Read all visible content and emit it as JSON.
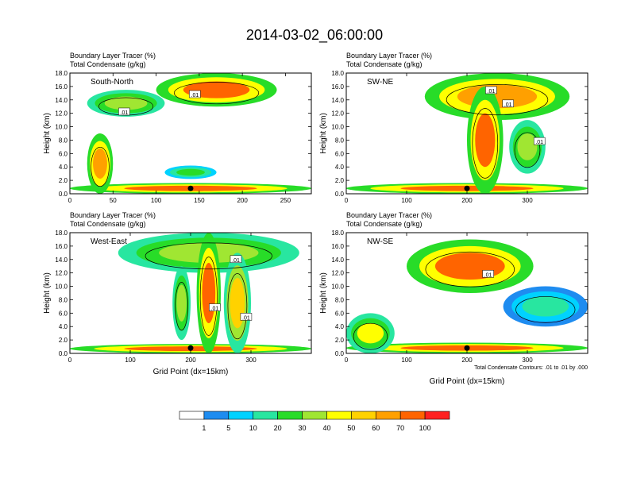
{
  "title": "2014-03-02_06:00:00",
  "chart_data": [
    {
      "type": "heatmap",
      "series_labels": [
        "Boundary Layer Tracer   (%)",
        "Total Condensate   (g/kg)"
      ],
      "panel_label": "South-North",
      "ylabel": "Height (km)",
      "xlabel": "",
      "xlim": [
        0,
        280
      ],
      "xticks": [
        0,
        50,
        100,
        150,
        200,
        250
      ],
      "ylim": [
        0,
        18
      ],
      "yticks": [
        "0.0",
        "2.0",
        "4.0",
        "6.0",
        "8.0",
        "10.0",
        "12.0",
        "14.0",
        "16.0",
        "18.0"
      ],
      "contour_labels": [
        ".01",
        ".01"
      ],
      "contour_label_pos": [
        [
          145,
          14.8
        ],
        [
          63,
          12.2
        ]
      ],
      "marker_x": 140,
      "features": [
        {
          "x": [
            0,
            280
          ],
          "y": [
            0,
            1.6
          ],
          "level": 70
        },
        {
          "x": [
            20,
            110
          ],
          "y": [
            11.5,
            15.5
          ],
          "level": 30
        },
        {
          "x": [
            100,
            240
          ],
          "y": [
            13,
            18
          ],
          "level": 70
        },
        {
          "x": [
            20,
            50
          ],
          "y": [
            0,
            9
          ],
          "level": 60
        },
        {
          "x": [
            110,
            170
          ],
          "y": [
            2.2,
            4.2
          ],
          "level": 20
        }
      ]
    },
    {
      "type": "heatmap",
      "series_labels": [
        "Boundary Layer Tracer   (%)",
        "Total Condensate   (g/kg)"
      ],
      "panel_label": "SW-NE",
      "ylabel": "Height (km)",
      "xlabel": "",
      "xlim": [
        0,
        400
      ],
      "xticks": [
        0,
        100,
        200,
        300
      ],
      "ylim": [
        0,
        18
      ],
      "yticks": [
        "0.0",
        "2.0",
        "4.0",
        "6.0",
        "8.0",
        "10.0",
        "12.0",
        "14.0",
        "16.0",
        "18.0"
      ],
      "contour_labels": [
        ".01",
        ".01",
        ".01"
      ],
      "contour_label_pos": [
        [
          240,
          15.4
        ],
        [
          268,
          13.4
        ],
        [
          320,
          7.8
        ]
      ],
      "marker_x": 200,
      "features": [
        {
          "x": [
            0,
            400
          ],
          "y": [
            0,
            1.6
          ],
          "level": 70
        },
        {
          "x": [
            130,
            370
          ],
          "y": [
            11,
            18
          ],
          "level": 60
        },
        {
          "x": [
            200,
            260
          ],
          "y": [
            0,
            16
          ],
          "level": 70
        },
        {
          "x": [
            270,
            330
          ],
          "y": [
            3,
            11
          ],
          "level": 30
        }
      ]
    },
    {
      "type": "heatmap",
      "series_labels": [
        "Boundary Layer Tracer   (%)",
        "Total Condensate   (g/kg)"
      ],
      "panel_label": "West-East",
      "ylabel": "Height (km)",
      "xlabel": "Grid Point (dx=15km)",
      "xlim": [
        0,
        400
      ],
      "xticks": [
        0,
        100,
        200,
        300
      ],
      "ylim": [
        0,
        18
      ],
      "yticks": [
        "0.0",
        "2.0",
        "4.0",
        "6.0",
        "8.0",
        "10.0",
        "12.0",
        "14.0",
        "16.0",
        "18.0"
      ],
      "contour_labels": [
        ".01",
        ".01",
        ".01"
      ],
      "contour_label_pos": [
        [
          275,
          14.0
        ],
        [
          240,
          6.8
        ],
        [
          292,
          5.4
        ]
      ],
      "marker_x": 200,
      "features": [
        {
          "x": [
            0,
            400
          ],
          "y": [
            0,
            1.4
          ],
          "level": 70
        },
        {
          "x": [
            80,
            380
          ],
          "y": [
            12,
            18
          ],
          "level": 30
        },
        {
          "x": [
            210,
            250
          ],
          "y": [
            0,
            18
          ],
          "level": 70
        },
        {
          "x": [
            255,
            300
          ],
          "y": [
            0,
            15
          ],
          "level": 50
        },
        {
          "x": [
            170,
            200
          ],
          "y": [
            2,
            13
          ],
          "level": 30
        }
      ]
    },
    {
      "type": "heatmap",
      "series_labels": [
        "Boundary Layer Tracer   (%)",
        "Total Condensate   (g/kg)"
      ],
      "panel_label": "NW-SE",
      "ylabel": "Height (km)",
      "xlabel": "Grid Point (dx=15km)",
      "xlim": [
        0,
        400
      ],
      "xticks": [
        0,
        100,
        200,
        300
      ],
      "ylim": [
        0,
        18
      ],
      "yticks": [
        "0.0",
        "2.0",
        "4.0",
        "6.0",
        "8.0",
        "10.0",
        "12.0",
        "14.0",
        "16.0",
        "18.0"
      ],
      "contour_labels": [
        ".01"
      ],
      "contour_label_pos": [
        [
          235,
          11.8
        ]
      ],
      "marker_x": 200,
      "footnote": "Total Condensate Contours: .01 to .01 by .000",
      "features": [
        {
          "x": [
            0,
            400
          ],
          "y": [
            0,
            1.6
          ],
          "level": 70
        },
        {
          "x": [
            100,
            310
          ],
          "y": [
            9,
            17
          ],
          "level": 70
        },
        {
          "x": [
            0,
            80
          ],
          "y": [
            0,
            6
          ],
          "level": 40
        },
        {
          "x": [
            260,
            400
          ],
          "y": [
            4,
            10
          ],
          "level": 10
        }
      ]
    }
  ],
  "colorbar": {
    "labels": [
      "1",
      "5",
      "10",
      "20",
      "30",
      "40",
      "50",
      "60",
      "70",
      "100"
    ],
    "colors": [
      "#ffffff",
      "#1e8cf0",
      "#00d2ff",
      "#28e6a0",
      "#28dc28",
      "#a0e632",
      "#ffff00",
      "#ffd200",
      "#ffa000",
      "#ff6400",
      "#ff2020"
    ]
  }
}
